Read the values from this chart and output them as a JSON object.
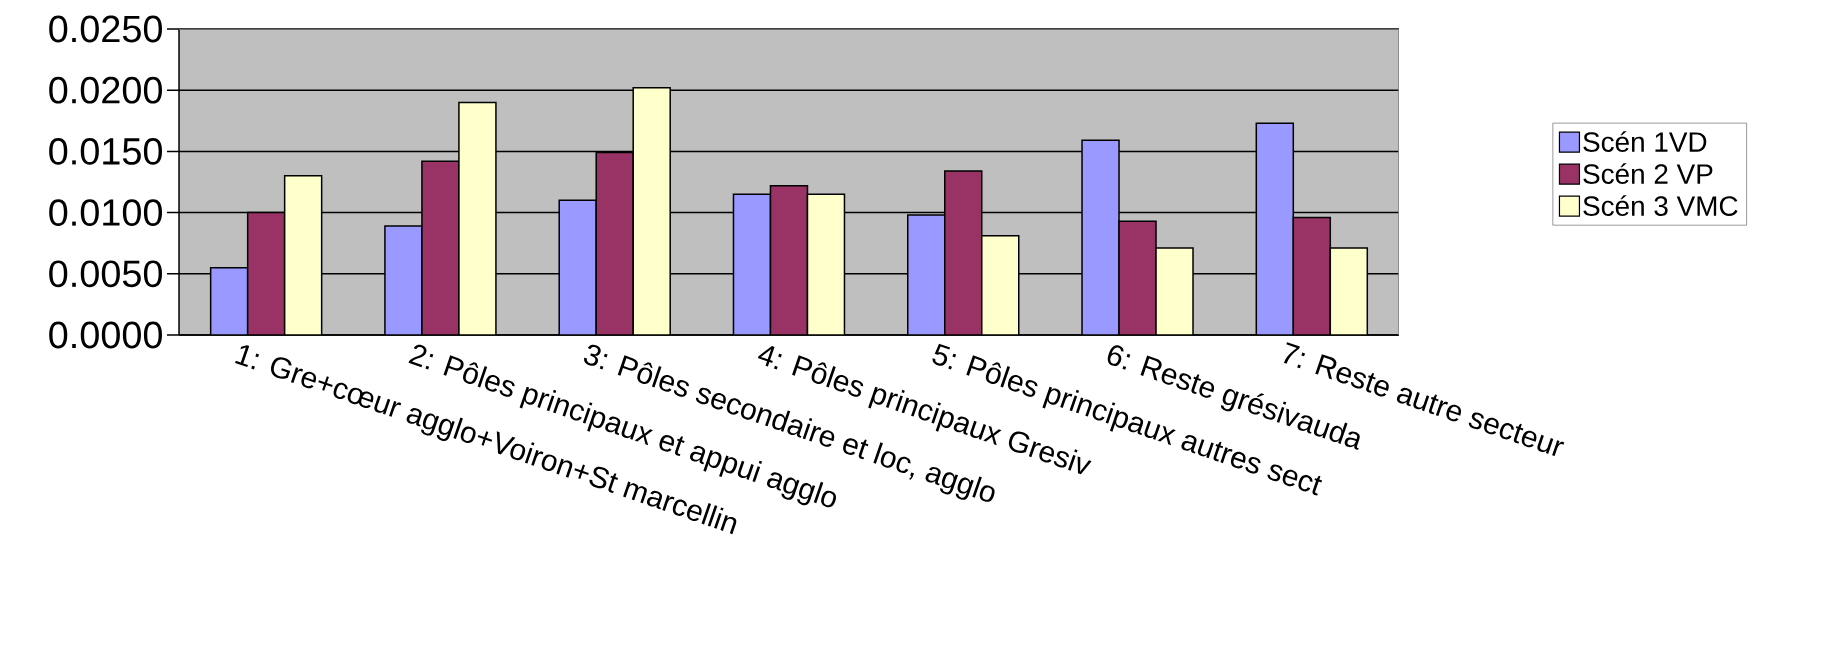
{
  "chart_data": {
    "type": "bar",
    "categories": [
      "1: Gre+cœur agglo+Voiron+St marcellin",
      "2: Pôles principaux et appui agglo",
      "3: Pôles secondaire et loc, agglo",
      "4: Pôles principaux Gresiv",
      "5: Pôles principaux autres sect",
      "6: Reste grésivauda",
      "7: Reste autre secteur"
    ],
    "series": [
      {
        "name": "Scén 1VD",
        "color": "#9999ff",
        "values": [
          0.0055,
          0.0089,
          0.011,
          0.0115,
          0.0098,
          0.0159,
          0.0173
        ]
      },
      {
        "name": "Scén 2 VP",
        "color": "#993366",
        "values": [
          0.01,
          0.0142,
          0.0149,
          0.0122,
          0.0134,
          0.0093,
          0.0096
        ]
      },
      {
        "name": "Scén 3 VMC",
        "color": "#ffffcc",
        "values": [
          0.013,
          0.019,
          0.0202,
          0.0115,
          0.0081,
          0.0071,
          0.0071
        ]
      }
    ],
    "ylim": [
      0,
      0.025
    ],
    "yticks": [
      {
        "value": 0,
        "label": "0.0000"
      },
      {
        "value": 0.005,
        "label": "0.0050"
      },
      {
        "value": 0.01,
        "label": "0.0100"
      },
      {
        "value": 0.015,
        "label": "0.0150"
      },
      {
        "value": 0.02,
        "label": "0.0200"
      },
      {
        "value": 0.025,
        "label": "0.0250"
      }
    ],
    "grid": "y",
    "legend": "right"
  }
}
